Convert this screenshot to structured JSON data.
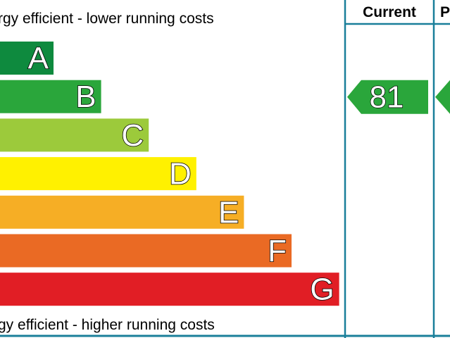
{
  "header": {
    "top_caption": "rgy efficient - lower running costs",
    "bottom_caption": "gy efficient - higher running costs",
    "col_current": "Current",
    "col_potential": "P"
  },
  "ratings": [
    {
      "letter": "A",
      "color": "#0e8a3e"
    },
    {
      "letter": "B",
      "color": "#2aa63b"
    },
    {
      "letter": "C",
      "color": "#9cca3b"
    },
    {
      "letter": "D",
      "color": "#fff100"
    },
    {
      "letter": "E",
      "color": "#f6ae25"
    },
    {
      "letter": "F",
      "color": "#ea6a24"
    },
    {
      "letter": "G",
      "color": "#e11e25"
    }
  ],
  "current": {
    "value": "81",
    "band": "B",
    "color": "#2aa63b"
  },
  "potential": {
    "band": "B",
    "color": "#2aa63b"
  },
  "colors": {
    "frame": "#1a7f9a"
  }
}
